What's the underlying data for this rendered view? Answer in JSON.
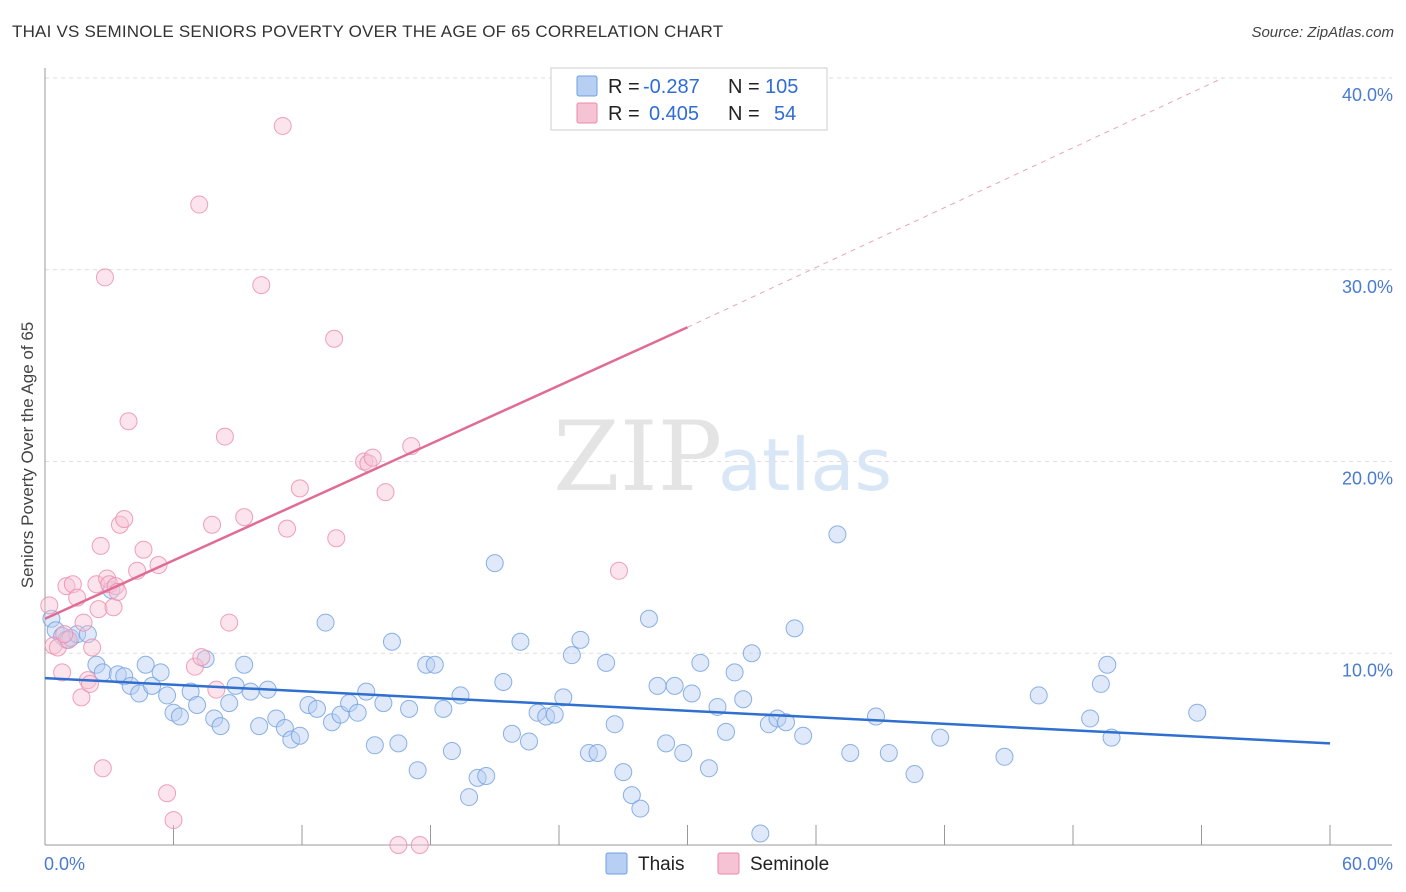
{
  "header": {
    "title": "THAI VS SEMINOLE SENIORS POVERTY OVER THE AGE OF 65 CORRELATION CHART",
    "source": "Source: ZipAtlas.com"
  },
  "watermark": {
    "zip": "ZIP",
    "atlas": "atlas"
  },
  "legend": {
    "rows": [
      {
        "r_label": "R =",
        "r_value": "-0.287",
        "n_label": "N =",
        "n_value": "105",
        "color": "#8fb3e8"
      },
      {
        "r_label": "R =",
        "r_value": "0.405",
        "n_label": "N =",
        "n_value": "54",
        "color": "#f2a3bd"
      }
    ]
  },
  "chart_data": {
    "type": "scatter",
    "title": "THAI VS SEMINOLE SENIORS POVERTY OVER THE AGE OF 65 CORRELATION CHART",
    "xlabel": "",
    "ylabel": "Seniors Poverty Over the Age of 65",
    "xlim": [
      0,
      60
    ],
    "ylim": [
      0,
      40
    ],
    "x_tick_labels": [
      "0.0%",
      "60.0%"
    ],
    "y_ticks": [
      10,
      20,
      30,
      40
    ],
    "y_tick_labels": [
      "10.0%",
      "20.0%",
      "30.0%",
      "40.0%"
    ],
    "grid": true,
    "legend_position": "top-center",
    "series": [
      {
        "name": "Thais",
        "color": "#6f9fe0",
        "fill": "#b7cff2",
        "trend": {
          "x0": 0,
          "y0": 8.7,
          "x1": 60,
          "y1": 5.3
        },
        "points": [
          [
            0.3,
            11.8
          ],
          [
            0.5,
            11.2
          ],
          [
            0.8,
            10.9
          ],
          [
            1.0,
            10.7
          ],
          [
            1.2,
            10.8
          ],
          [
            1.5,
            11.0
          ],
          [
            2.0,
            11.0
          ],
          [
            2.4,
            9.4
          ],
          [
            2.7,
            9.0
          ],
          [
            3.1,
            13.3
          ],
          [
            3.4,
            8.9
          ],
          [
            3.7,
            8.8
          ],
          [
            4.0,
            8.3
          ],
          [
            4.4,
            7.9
          ],
          [
            4.7,
            9.4
          ],
          [
            5.0,
            8.3
          ],
          [
            5.4,
            9.0
          ],
          [
            5.7,
            7.8
          ],
          [
            6.0,
            6.9
          ],
          [
            6.3,
            6.7
          ],
          [
            6.8,
            8.0
          ],
          [
            7.1,
            7.3
          ],
          [
            7.5,
            9.7
          ],
          [
            7.9,
            6.6
          ],
          [
            8.2,
            6.2
          ],
          [
            8.6,
            7.4
          ],
          [
            8.9,
            8.3
          ],
          [
            9.3,
            9.4
          ],
          [
            9.6,
            8.0
          ],
          [
            10.0,
            6.2
          ],
          [
            10.4,
            8.1
          ],
          [
            10.8,
            6.6
          ],
          [
            11.2,
            6.1
          ],
          [
            11.5,
            5.5
          ],
          [
            11.9,
            5.7
          ],
          [
            12.3,
            7.3
          ],
          [
            12.7,
            7.1
          ],
          [
            13.1,
            11.6
          ],
          [
            13.4,
            6.4
          ],
          [
            13.8,
            6.8
          ],
          [
            14.2,
            7.4
          ],
          [
            14.6,
            6.9
          ],
          [
            15.0,
            8.0
          ],
          [
            15.4,
            5.2
          ],
          [
            15.8,
            7.4
          ],
          [
            16.2,
            10.6
          ],
          [
            16.5,
            5.3
          ],
          [
            17.0,
            7.1
          ],
          [
            17.4,
            3.9
          ],
          [
            17.8,
            9.4
          ],
          [
            18.2,
            9.4
          ],
          [
            18.6,
            7.1
          ],
          [
            19.0,
            4.9
          ],
          [
            19.4,
            7.8
          ],
          [
            19.8,
            2.5
          ],
          [
            20.2,
            3.5
          ],
          [
            20.6,
            3.6
          ],
          [
            21.0,
            14.7
          ],
          [
            21.4,
            8.5
          ],
          [
            21.8,
            5.8
          ],
          [
            22.2,
            10.6
          ],
          [
            22.6,
            5.4
          ],
          [
            23.0,
            6.9
          ],
          [
            23.4,
            6.7
          ],
          [
            23.8,
            6.8
          ],
          [
            24.2,
            7.7
          ],
          [
            24.6,
            9.9
          ],
          [
            25.0,
            10.7
          ],
          [
            25.4,
            4.8
          ],
          [
            25.8,
            4.8
          ],
          [
            26.2,
            9.5
          ],
          [
            26.6,
            6.3
          ],
          [
            27.0,
            3.8
          ],
          [
            27.4,
            2.6
          ],
          [
            27.8,
            1.9
          ],
          [
            28.2,
            11.8
          ],
          [
            28.6,
            8.3
          ],
          [
            29.0,
            5.3
          ],
          [
            29.4,
            8.3
          ],
          [
            29.8,
            4.8
          ],
          [
            30.2,
            7.9
          ],
          [
            30.6,
            9.5
          ],
          [
            31.0,
            4.0
          ],
          [
            31.4,
            7.2
          ],
          [
            31.8,
            5.9
          ],
          [
            32.2,
            9.0
          ],
          [
            32.6,
            7.6
          ],
          [
            33.0,
            10.0
          ],
          [
            33.4,
            0.6
          ],
          [
            33.8,
            6.3
          ],
          [
            34.2,
            6.6
          ],
          [
            34.6,
            6.4
          ],
          [
            35.0,
            11.3
          ],
          [
            35.4,
            5.7
          ],
          [
            37.0,
            16.2
          ],
          [
            37.6,
            4.8
          ],
          [
            38.8,
            6.7
          ],
          [
            39.4,
            4.8
          ],
          [
            40.6,
            3.7
          ],
          [
            41.8,
            5.6
          ],
          [
            44.8,
            4.6
          ],
          [
            46.4,
            7.8
          ],
          [
            48.8,
            6.6
          ],
          [
            49.3,
            8.4
          ],
          [
            49.6,
            9.4
          ],
          [
            49.8,
            5.6
          ],
          [
            53.8,
            6.9
          ]
        ]
      },
      {
        "name": "Seminole",
        "color": "#ec8aab",
        "fill": "#f6c3d4",
        "trend": {
          "x0": 0,
          "y0": 11.8,
          "x1": 30,
          "y1": 27.0
        },
        "trend_dashed": {
          "x0": 30,
          "y0": 27.0,
          "x1": 55,
          "y1": 40.0
        },
        "points": [
          [
            0.2,
            12.5
          ],
          [
            0.4,
            10.4
          ],
          [
            0.6,
            10.3
          ],
          [
            0.8,
            9.0
          ],
          [
            1.0,
            13.5
          ],
          [
            1.1,
            10.7
          ],
          [
            1.3,
            13.6
          ],
          [
            1.5,
            12.9
          ],
          [
            1.7,
            7.7
          ],
          [
            1.8,
            11.6
          ],
          [
            2.0,
            8.6
          ],
          [
            2.1,
            8.4
          ],
          [
            2.2,
            10.3
          ],
          [
            2.4,
            13.6
          ],
          [
            2.5,
            12.3
          ],
          [
            2.6,
            15.6
          ],
          [
            2.7,
            4.0
          ],
          [
            2.8,
            29.6
          ],
          [
            2.9,
            13.9
          ],
          [
            3.0,
            13.6
          ],
          [
            3.2,
            12.4
          ],
          [
            3.3,
            13.5
          ],
          [
            3.4,
            13.2
          ],
          [
            3.5,
            16.7
          ],
          [
            3.7,
            17.0
          ],
          [
            3.9,
            22.1
          ],
          [
            4.3,
            14.3
          ],
          [
            4.6,
            15.4
          ],
          [
            5.3,
            14.6
          ],
          [
            5.7,
            2.7
          ],
          [
            6.0,
            1.3
          ],
          [
            7.0,
            9.3
          ],
          [
            7.2,
            33.4
          ],
          [
            7.3,
            9.8
          ],
          [
            7.8,
            16.7
          ],
          [
            8.0,
            8.1
          ],
          [
            8.4,
            21.3
          ],
          [
            8.6,
            11.6
          ],
          [
            9.3,
            17.1
          ],
          [
            10.1,
            29.2
          ],
          [
            11.1,
            37.5
          ],
          [
            11.3,
            16.5
          ],
          [
            11.9,
            18.6
          ],
          [
            13.5,
            26.4
          ],
          [
            13.6,
            16.0
          ],
          [
            14.9,
            20.0
          ],
          [
            15.1,
            19.9
          ],
          [
            15.3,
            20.2
          ],
          [
            15.9,
            18.4
          ],
          [
            16.5,
            0.0
          ],
          [
            17.1,
            20.8
          ],
          [
            17.5,
            0.0
          ],
          [
            26.8,
            14.3
          ],
          [
            0.9,
            11.0
          ]
        ]
      }
    ]
  }
}
